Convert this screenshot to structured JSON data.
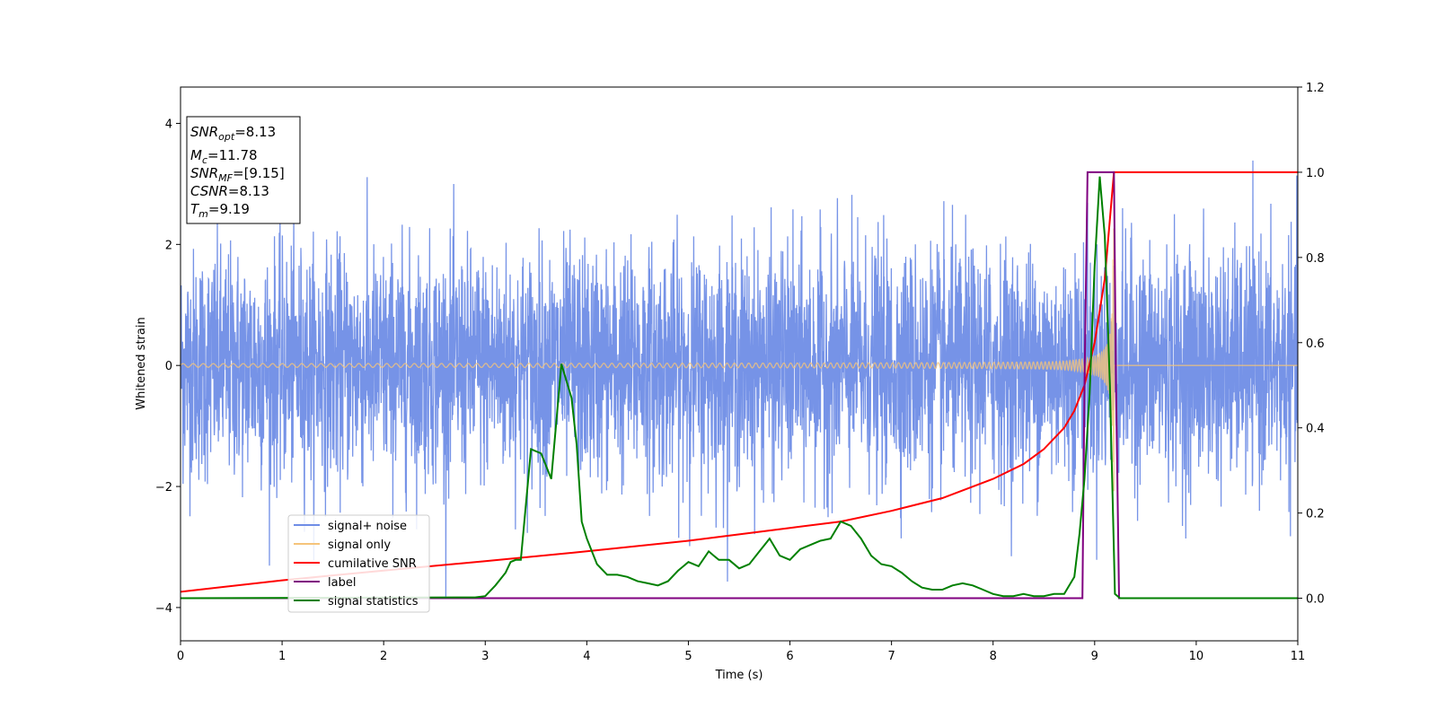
{
  "chart_data": {
    "type": "line",
    "xlabel": "Time (s)",
    "ylabel": "Whitened strain",
    "xlim": [
      0,
      11
    ],
    "ylim_left": [
      -4.55,
      4.6
    ],
    "ylim_right": [
      -0.1,
      1.2
    ],
    "x_ticks": [
      0,
      1,
      2,
      3,
      4,
      5,
      6,
      7,
      8,
      9,
      10,
      11
    ],
    "y_ticks_left": [
      -4,
      -2,
      0,
      2,
      4
    ],
    "y_ticks_right": [
      0.0,
      0.2,
      0.4,
      0.6,
      0.8,
      1.0,
      1.2
    ],
    "y_tick_labels_right": [
      "0.0",
      "0.2",
      "0.4",
      "0.6",
      "0.8",
      "1.0",
      "1.2"
    ],
    "grid": false,
    "legend_position": "lower-left",
    "info_box": {
      "snr_opt": {
        "main": "SNR",
        "sub": "opt",
        "value": "=8.13"
      },
      "mc": {
        "main": "M",
        "sub": "c",
        "value": "=11.78"
      },
      "snr_mf": {
        "main": "SNR",
        "sub": "MF",
        "value": "=[9.15]"
      },
      "csnr": {
        "main": "CSNR",
        "value": "=8.13"
      },
      "tm": {
        "main": "T",
        "sub": "m",
        "value": "=9.19"
      }
    },
    "series": [
      {
        "name": "signal+ noise",
        "axis": "left",
        "color": "#6f8de6",
        "noise": {
          "sigma": 0.95,
          "max_abs": 4.2,
          "t_start": 0,
          "t_end": 11
        }
      },
      {
        "name": "signal only",
        "axis": "left",
        "color": "#f5c47a",
        "chirp": {
          "t_start": 0,
          "t_merger": 9.19,
          "amp_start": 0.03,
          "amp_peak": 2.3,
          "t_end": 11
        }
      },
      {
        "name": "cumilative SNR",
        "axis": "right",
        "color": "#ff0000",
        "x": [
          0,
          1,
          2,
          3,
          4,
          5,
          6,
          6.5,
          7,
          7.5,
          8,
          8.3,
          8.5,
          8.7,
          8.8,
          8.9,
          9.0,
          9.1,
          9.19,
          11
        ],
        "y": [
          0.015,
          0.042,
          0.065,
          0.087,
          0.11,
          0.135,
          0.165,
          0.18,
          0.205,
          0.235,
          0.28,
          0.315,
          0.35,
          0.4,
          0.44,
          0.5,
          0.6,
          0.75,
          1.0,
          1.0
        ]
      },
      {
        "name": "label",
        "axis": "right",
        "color": "#800080",
        "x": [
          0,
          8.88,
          8.9,
          8.93,
          9.19,
          9.21,
          9.24,
          11
        ],
        "y": [
          0.0,
          0.0,
          0.5,
          1.0,
          1.0,
          0.5,
          0.0,
          0.0
        ]
      },
      {
        "name": "signal statistics",
        "axis": "right",
        "color": "#008000",
        "x": [
          0,
          2.9,
          3.0,
          3.1,
          3.2,
          3.25,
          3.3,
          3.35,
          3.45,
          3.55,
          3.65,
          3.75,
          3.85,
          3.9,
          3.95,
          4.0,
          4.05,
          4.1,
          4.2,
          4.3,
          4.4,
          4.5,
          4.6,
          4.7,
          4.8,
          4.9,
          5.0,
          5.1,
          5.2,
          5.25,
          5.3,
          5.4,
          5.5,
          5.6,
          5.7,
          5.8,
          5.9,
          6.0,
          6.1,
          6.2,
          6.3,
          6.4,
          6.5,
          6.6,
          6.7,
          6.8,
          6.9,
          7.0,
          7.1,
          7.2,
          7.3,
          7.4,
          7.5,
          7.6,
          7.7,
          7.8,
          7.9,
          8.0,
          8.1,
          8.2,
          8.3,
          8.4,
          8.5,
          8.6,
          8.7,
          8.8,
          8.85,
          8.9,
          8.95,
          9.0,
          9.05,
          9.1,
          9.15,
          9.2,
          9.25,
          9.4,
          11
        ],
        "y": [
          0.0,
          0.002,
          0.005,
          0.03,
          0.06,
          0.085,
          0.09,
          0.09,
          0.35,
          0.34,
          0.28,
          0.55,
          0.47,
          0.36,
          0.18,
          0.14,
          0.11,
          0.08,
          0.055,
          0.055,
          0.05,
          0.04,
          0.035,
          0.03,
          0.04,
          0.065,
          0.085,
          0.075,
          0.11,
          0.1,
          0.09,
          0.09,
          0.07,
          0.08,
          0.11,
          0.14,
          0.1,
          0.09,
          0.115,
          0.125,
          0.135,
          0.14,
          0.18,
          0.17,
          0.14,
          0.1,
          0.08,
          0.075,
          0.06,
          0.04,
          0.025,
          0.02,
          0.02,
          0.03,
          0.035,
          0.03,
          0.02,
          0.01,
          0.005,
          0.005,
          0.01,
          0.005,
          0.005,
          0.01,
          0.01,
          0.05,
          0.15,
          0.28,
          0.48,
          0.78,
          0.99,
          0.85,
          0.5,
          0.01,
          0.0,
          0.0,
          0.0
        ]
      }
    ]
  }
}
